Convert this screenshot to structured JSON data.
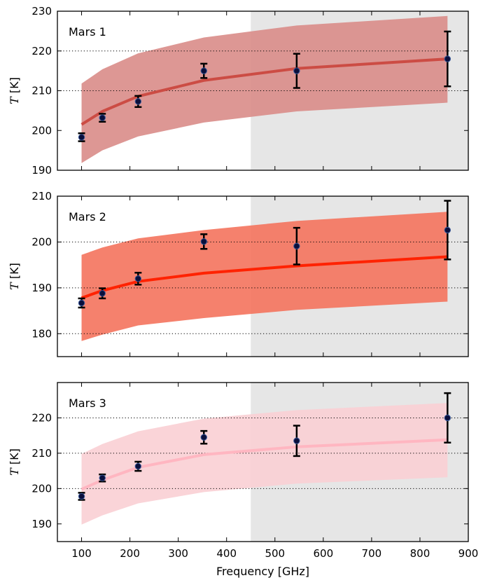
{
  "chart_data": [
    {
      "type": "line",
      "label": "Mars 1",
      "ylabel_var": "T",
      "ylabel_unit": "[K]",
      "xlim": [
        50,
        900
      ],
      "ylim": [
        190,
        230
      ],
      "yticks": [
        190,
        200,
        210,
        220,
        230
      ],
      "y_gridlines": [
        210,
        220
      ],
      "shaded_x_range": [
        450,
        900
      ],
      "color": "#cc4c44",
      "band_color": "#d98c88",
      "model_x": [
        100,
        143,
        217,
        353,
        545,
        857
      ],
      "model_y": [
        201.5,
        204.8,
        208.6,
        212.6,
        215.6,
        218.0
      ],
      "band_lower": [
        191.8,
        195.0,
        198.5,
        202.0,
        204.8,
        207.0
      ],
      "band_upper": [
        211.8,
        215.4,
        219.4,
        223.4,
        226.4,
        228.8
      ],
      "points": [
        {
          "x": 100,
          "y": 198.3,
          "err": 1.0
        },
        {
          "x": 143,
          "y": 203.2,
          "err": 1.0
        },
        {
          "x": 217,
          "y": 207.3,
          "err": 1.4
        },
        {
          "x": 353,
          "y": 215.0,
          "err": 1.8
        },
        {
          "x": 545,
          "y": 215.0,
          "err": 4.3
        },
        {
          "x": 857,
          "y": 218.0,
          "err": 6.9
        }
      ]
    },
    {
      "type": "line",
      "label": "Mars 2",
      "ylabel_var": "T",
      "ylabel_unit": "[K]",
      "xlim": [
        50,
        900
      ],
      "ylim": [
        175,
        210
      ],
      "yticks": [
        180,
        190,
        200,
        210
      ],
      "y_gridlines": [
        180,
        190,
        200
      ],
      "shaded_x_range": [
        450,
        900
      ],
      "color": "#ff2200",
      "band_color": "#f4735d",
      "model_x": [
        100,
        143,
        217,
        353,
        545,
        857
      ],
      "model_y": [
        187.8,
        189.4,
        191.4,
        193.2,
        194.8,
        196.8
      ],
      "band_lower": [
        178.4,
        179.8,
        181.8,
        183.4,
        185.2,
        187.0
      ],
      "band_upper": [
        197.2,
        198.8,
        200.8,
        202.6,
        204.6,
        206.6
      ],
      "points": [
        {
          "x": 100,
          "y": 186.7,
          "err": 1.0
        },
        {
          "x": 143,
          "y": 188.8,
          "err": 1.1
        },
        {
          "x": 217,
          "y": 192.0,
          "err": 1.3
        },
        {
          "x": 353,
          "y": 200.1,
          "err": 1.6
        },
        {
          "x": 545,
          "y": 199.1,
          "err": 4.0
        },
        {
          "x": 857,
          "y": 202.6,
          "err": 6.4
        }
      ]
    },
    {
      "type": "line",
      "label": "Mars 3",
      "ylabel_var": "T",
      "ylabel_unit": "[K]",
      "xlabel": "Frequency [GHz]",
      "xlim": [
        50,
        900
      ],
      "ylim": [
        185,
        230
      ],
      "yticks": [
        190,
        200,
        210,
        220
      ],
      "xticks": [
        100,
        200,
        300,
        400,
        500,
        600,
        700,
        800,
        900
      ],
      "y_gridlines": [
        200,
        210,
        220
      ],
      "shaded_x_range": [
        450,
        900
      ],
      "color": "#ffb6c1",
      "band_color": "#f9cfd4",
      "model_x": [
        100,
        143,
        217,
        353,
        545,
        857
      ],
      "model_y": [
        199.8,
        202.4,
        206.0,
        209.6,
        211.8,
        213.8
      ],
      "band_lower": [
        189.8,
        192.4,
        195.8,
        199.0,
        201.4,
        203.2
      ],
      "band_upper": [
        209.8,
        212.6,
        216.2,
        219.8,
        222.2,
        224.2
      ],
      "points": [
        {
          "x": 100,
          "y": 197.8,
          "err": 1.0
        },
        {
          "x": 143,
          "y": 203.0,
          "err": 1.0
        },
        {
          "x": 217,
          "y": 206.3,
          "err": 1.3
        },
        {
          "x": 353,
          "y": 214.5,
          "err": 1.8
        },
        {
          "x": 545,
          "y": 213.5,
          "err": 4.3
        },
        {
          "x": 857,
          "y": 220.0,
          "err": 7.0
        }
      ]
    }
  ]
}
